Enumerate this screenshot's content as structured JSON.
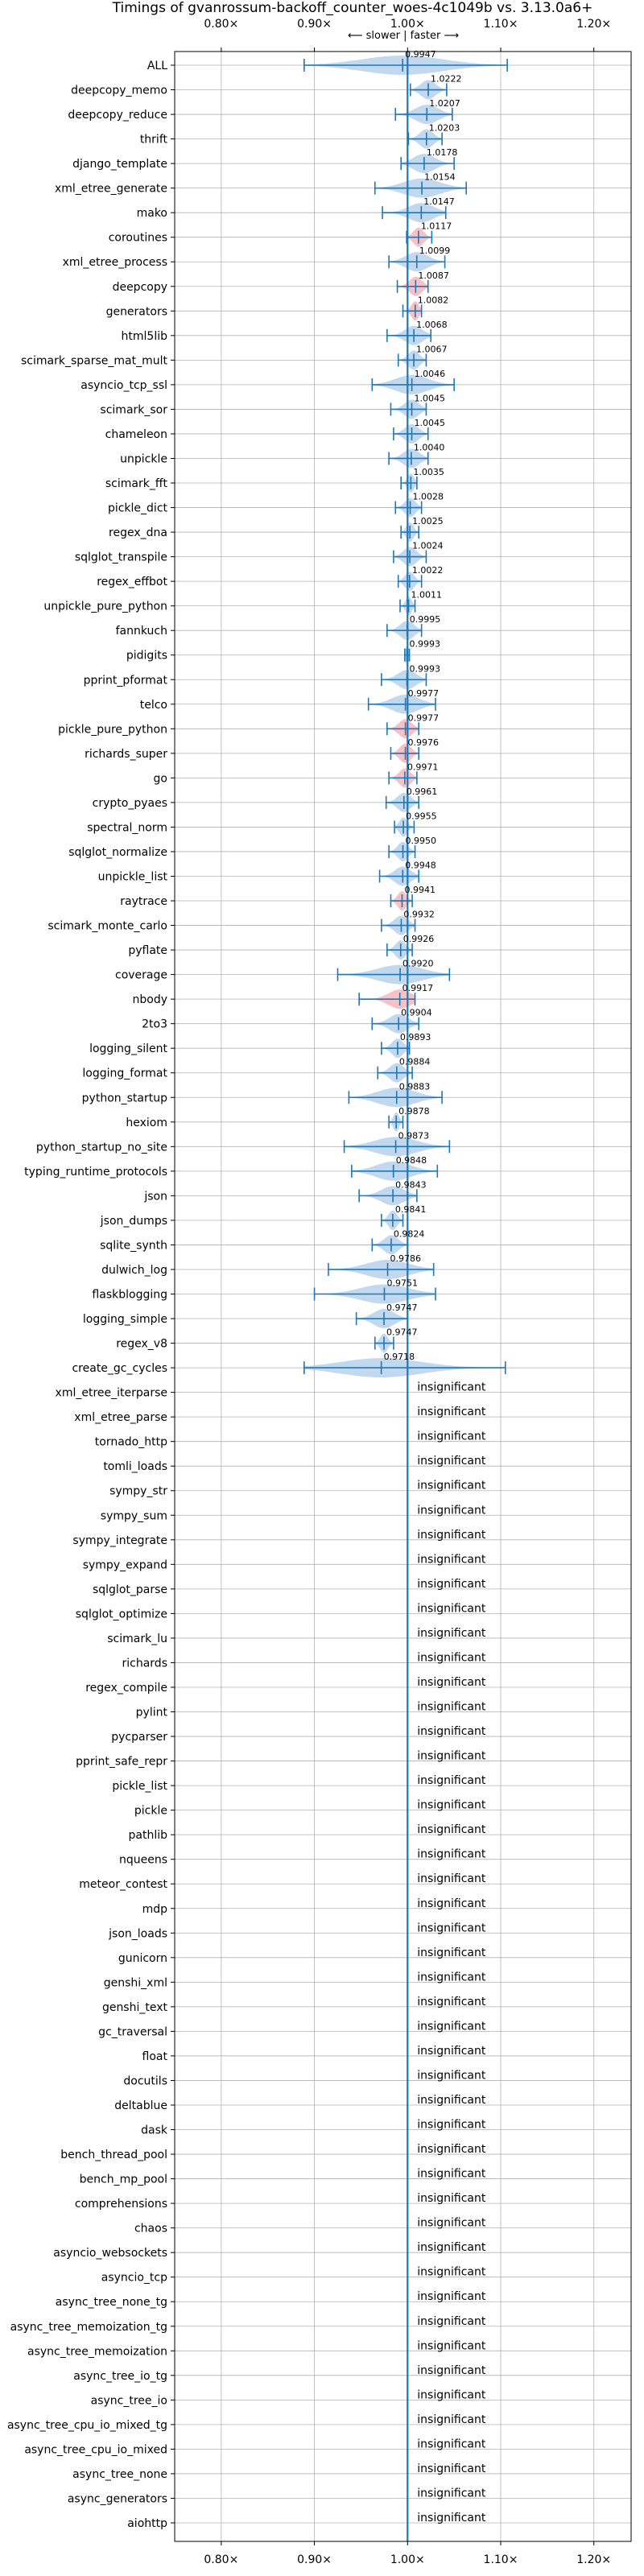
{
  "chart_data": {
    "type": "violin",
    "title": "Timings of gvanrossum-backoff_counter_woes-4c1049b vs. 3.13.0a6+",
    "direction_hint": "⟵ slower | faster ⟶",
    "xlim": [
      0.75,
      1.24
    ],
    "xticks": [
      0.8,
      0.9,
      1.0,
      1.1,
      1.2
    ],
    "xtick_labels": [
      "0.80×",
      "0.90×",
      "1.00×",
      "1.10×",
      "1.20×"
    ],
    "reference_line": 1.0,
    "insignificant_label": "insignificant",
    "colors": {
      "faster": "#a6c8e8",
      "slower": "#f4a7b1",
      "line": "#1f77b4",
      "grid": "#b0b0b0"
    },
    "benchmarks": [
      {
        "name": "ALL",
        "value": 0.9947,
        "label": "0.9947",
        "low": 0.889,
        "high": 1.107,
        "spread": 0.025
      },
      {
        "name": "deepcopy_memo",
        "value": 1.0222,
        "label": "1.0222",
        "low": 1.003,
        "high": 1.042,
        "spread": 0.02
      },
      {
        "name": "deepcopy_reduce",
        "value": 1.0207,
        "label": "1.0207",
        "low": 0.987,
        "high": 1.048,
        "spread": 0.03
      },
      {
        "name": "thrift",
        "value": 1.0203,
        "label": "1.0203",
        "low": 1.001,
        "high": 1.037,
        "spread": 0.015
      },
      {
        "name": "django_template",
        "value": 1.0178,
        "label": "1.0178",
        "low": 0.993,
        "high": 1.05,
        "spread": 0.02
      },
      {
        "name": "xml_etree_generate",
        "value": 1.0154,
        "label": "1.0154",
        "low": 0.965,
        "high": 1.063,
        "spread": 0.03
      },
      {
        "name": "mako",
        "value": 1.0147,
        "label": "1.0147",
        "low": 0.973,
        "high": 1.041,
        "spread": 0.02
      },
      {
        "name": "coroutines",
        "value": 1.0117,
        "label": "1.0117",
        "low": 0.999,
        "high": 1.026,
        "spread": 0.012
      },
      {
        "name": "xml_etree_process",
        "value": 1.0099,
        "label": "1.0099",
        "low": 0.98,
        "high": 1.04,
        "spread": 0.025
      },
      {
        "name": "deepcopy",
        "value": 1.0087,
        "label": "1.0087",
        "low": 0.989,
        "high": 1.022,
        "spread": 0.015
      },
      {
        "name": "generators",
        "value": 1.0082,
        "label": "1.0082",
        "low": 0.995,
        "high": 1.015,
        "spread": 0.012
      },
      {
        "name": "html5lib",
        "value": 1.0068,
        "label": "1.0068",
        "low": 0.978,
        "high": 1.025,
        "spread": 0.02
      },
      {
        "name": "scimark_sparse_mat_mult",
        "value": 1.0067,
        "label": "1.0067",
        "low": 0.99,
        "high": 1.02,
        "spread": 0.015
      },
      {
        "name": "asyncio_tcp_ssl",
        "value": 1.0046,
        "label": "1.0046",
        "low": 0.962,
        "high": 1.05,
        "spread": 0.025
      },
      {
        "name": "scimark_sor",
        "value": 1.0045,
        "label": "1.0045",
        "low": 0.982,
        "high": 1.02,
        "spread": 0.015
      },
      {
        "name": "chameleon",
        "value": 1.0045,
        "label": "1.0045",
        "low": 0.985,
        "high": 1.022,
        "spread": 0.015
      },
      {
        "name": "unpickle",
        "value": 1.004,
        "label": "1.0040",
        "low": 0.98,
        "high": 1.022,
        "spread": 0.02
      },
      {
        "name": "scimark_fft",
        "value": 1.0035,
        "label": "1.0035",
        "low": 0.993,
        "high": 1.01,
        "spread": 0.008
      },
      {
        "name": "pickle_dict",
        "value": 1.0028,
        "label": "1.0028",
        "low": 0.987,
        "high": 1.015,
        "spread": 0.012
      },
      {
        "name": "regex_dna",
        "value": 1.0025,
        "label": "1.0025",
        "low": 0.993,
        "high": 1.012,
        "spread": 0.008
      },
      {
        "name": "sqlglot_transpile",
        "value": 1.0024,
        "label": "1.0024",
        "low": 0.985,
        "high": 1.02,
        "spread": 0.015
      },
      {
        "name": "regex_effbot",
        "value": 1.0022,
        "label": "1.0022",
        "low": 0.99,
        "high": 1.015,
        "spread": 0.01
      },
      {
        "name": "unpickle_pure_python",
        "value": 1.0011,
        "label": "1.0011",
        "low": 0.992,
        "high": 1.008,
        "spread": 0.008
      },
      {
        "name": "fannkuch",
        "value": 0.9995,
        "label": "0.9995",
        "low": 0.978,
        "high": 1.015,
        "spread": 0.015
      },
      {
        "name": "pidigits",
        "value": 0.9993,
        "label": "0.9993",
        "low": 0.997,
        "high": 1.002,
        "spread": 0.004
      },
      {
        "name": "pprint_pformat",
        "value": 0.9993,
        "label": "0.9993",
        "low": 0.972,
        "high": 1.02,
        "spread": 0.015
      },
      {
        "name": "telco",
        "value": 0.9977,
        "label": "0.9977",
        "low": 0.958,
        "high": 1.03,
        "spread": 0.025
      },
      {
        "name": "pickle_pure_python",
        "value": 0.9977,
        "label": "0.9977",
        "low": 0.978,
        "high": 1.012,
        "spread": 0.012
      },
      {
        "name": "richards_super",
        "value": 0.9976,
        "label": "0.9976",
        "low": 0.982,
        "high": 1.012,
        "spread": 0.015
      },
      {
        "name": "go",
        "value": 0.9971,
        "label": "0.9971",
        "low": 0.98,
        "high": 1.01,
        "spread": 0.015
      },
      {
        "name": "crypto_pyaes",
        "value": 0.9961,
        "label": "0.9961",
        "low": 0.977,
        "high": 1.012,
        "spread": 0.015
      },
      {
        "name": "spectral_norm",
        "value": 0.9955,
        "label": "0.9955",
        "low": 0.986,
        "high": 1.007,
        "spread": 0.01
      },
      {
        "name": "sqlglot_normalize",
        "value": 0.995,
        "label": "0.9950",
        "low": 0.98,
        "high": 1.008,
        "spread": 0.012
      },
      {
        "name": "unpickle_list",
        "value": 0.9948,
        "label": "0.9948",
        "low": 0.97,
        "high": 1.012,
        "spread": 0.015
      },
      {
        "name": "raytrace",
        "value": 0.9941,
        "label": "0.9941",
        "low": 0.982,
        "high": 1.005,
        "spread": 0.012
      },
      {
        "name": "scimark_monte_carlo",
        "value": 0.9932,
        "label": "0.9932",
        "low": 0.972,
        "high": 1.008,
        "spread": 0.015
      },
      {
        "name": "pyflate",
        "value": 0.9926,
        "label": "0.9926",
        "low": 0.978,
        "high": 1.005,
        "spread": 0.012
      },
      {
        "name": "coverage",
        "value": 0.992,
        "label": "0.9920",
        "low": 0.925,
        "high": 1.045,
        "spread": 0.035
      },
      {
        "name": "nbody",
        "value": 0.9917,
        "label": "0.9917",
        "low": 0.948,
        "high": 1.008,
        "spread": 0.025
      },
      {
        "name": "2to3",
        "value": 0.9904,
        "label": "0.9904",
        "low": 0.962,
        "high": 1.012,
        "spread": 0.02
      },
      {
        "name": "logging_silent",
        "value": 0.9893,
        "label": "0.9893",
        "low": 0.972,
        "high": 1.002,
        "spread": 0.012
      },
      {
        "name": "logging_format",
        "value": 0.9884,
        "label": "0.9884",
        "low": 0.968,
        "high": 1.005,
        "spread": 0.015
      },
      {
        "name": "python_startup",
        "value": 0.9883,
        "label": "0.9883",
        "low": 0.937,
        "high": 1.037,
        "spread": 0.03
      },
      {
        "name": "hexiom",
        "value": 0.9878,
        "label": "0.9878",
        "low": 0.98,
        "high": 0.995,
        "spread": 0.008
      },
      {
        "name": "python_startup_no_site",
        "value": 0.9873,
        "label": "0.9873",
        "low": 0.932,
        "high": 1.045,
        "spread": 0.03
      },
      {
        "name": "typing_runtime_protocols",
        "value": 0.9848,
        "label": "0.9848",
        "low": 0.94,
        "high": 1.032,
        "spread": 0.03
      },
      {
        "name": "json",
        "value": 0.9843,
        "label": "0.9843",
        "low": 0.948,
        "high": 1.01,
        "spread": 0.025
      },
      {
        "name": "json_dumps",
        "value": 0.9841,
        "label": "0.9841",
        "low": 0.972,
        "high": 0.995,
        "spread": 0.012
      },
      {
        "name": "sqlite_synth",
        "value": 0.9824,
        "label": "0.9824",
        "low": 0.962,
        "high": 1.0,
        "spread": 0.015
      },
      {
        "name": "dulwich_log",
        "value": 0.9786,
        "label": "0.9786",
        "low": 0.915,
        "high": 1.028,
        "spread": 0.035
      },
      {
        "name": "flaskblogging",
        "value": 0.9751,
        "label": "0.9751",
        "low": 0.9,
        "high": 1.03,
        "spread": 0.035
      },
      {
        "name": "logging_simple",
        "value": 0.9747,
        "label": "0.9747",
        "low": 0.945,
        "high": 1.0,
        "spread": 0.025
      },
      {
        "name": "regex_v8",
        "value": 0.9747,
        "label": "0.9747",
        "low": 0.965,
        "high": 0.985,
        "spread": 0.01
      },
      {
        "name": "create_gc_cycles",
        "value": 0.9718,
        "label": "0.9718",
        "low": 0.889,
        "high": 1.105,
        "spread": 0.04
      },
      {
        "name": "xml_etree_iterparse",
        "insignificant": true
      },
      {
        "name": "xml_etree_parse",
        "insignificant": true
      },
      {
        "name": "tornado_http",
        "insignificant": true
      },
      {
        "name": "tomli_loads",
        "insignificant": true
      },
      {
        "name": "sympy_str",
        "insignificant": true
      },
      {
        "name": "sympy_sum",
        "insignificant": true
      },
      {
        "name": "sympy_integrate",
        "insignificant": true
      },
      {
        "name": "sympy_expand",
        "insignificant": true
      },
      {
        "name": "sqlglot_parse",
        "insignificant": true
      },
      {
        "name": "sqlglot_optimize",
        "insignificant": true
      },
      {
        "name": "scimark_lu",
        "insignificant": true
      },
      {
        "name": "richards",
        "insignificant": true
      },
      {
        "name": "regex_compile",
        "insignificant": true
      },
      {
        "name": "pylint",
        "insignificant": true
      },
      {
        "name": "pycparser",
        "insignificant": true
      },
      {
        "name": "pprint_safe_repr",
        "insignificant": true
      },
      {
        "name": "pickle_list",
        "insignificant": true
      },
      {
        "name": "pickle",
        "insignificant": true
      },
      {
        "name": "pathlib",
        "insignificant": true
      },
      {
        "name": "nqueens",
        "insignificant": true
      },
      {
        "name": "meteor_contest",
        "insignificant": true
      },
      {
        "name": "mdp",
        "insignificant": true
      },
      {
        "name": "json_loads",
        "insignificant": true
      },
      {
        "name": "gunicorn",
        "insignificant": true
      },
      {
        "name": "genshi_xml",
        "insignificant": true
      },
      {
        "name": "genshi_text",
        "insignificant": true
      },
      {
        "name": "gc_traversal",
        "insignificant": true
      },
      {
        "name": "float",
        "insignificant": true
      },
      {
        "name": "docutils",
        "insignificant": true
      },
      {
        "name": "deltablue",
        "insignificant": true
      },
      {
        "name": "dask",
        "insignificant": true
      },
      {
        "name": "bench_thread_pool",
        "insignificant": true
      },
      {
        "name": "bench_mp_pool",
        "insignificant": true
      },
      {
        "name": "comprehensions",
        "insignificant": true
      },
      {
        "name": "chaos",
        "insignificant": true
      },
      {
        "name": "asyncio_websockets",
        "insignificant": true
      },
      {
        "name": "asyncio_tcp",
        "insignificant": true
      },
      {
        "name": "async_tree_none_tg",
        "insignificant": true
      },
      {
        "name": "async_tree_memoization_tg",
        "insignificant": true
      },
      {
        "name": "async_tree_memoization",
        "insignificant": true
      },
      {
        "name": "async_tree_io_tg",
        "insignificant": true
      },
      {
        "name": "async_tree_io",
        "insignificant": true
      },
      {
        "name": "async_tree_cpu_io_mixed_tg",
        "insignificant": true
      },
      {
        "name": "async_tree_cpu_io_mixed",
        "insignificant": true
      },
      {
        "name": "async_tree_none",
        "insignificant": true
      },
      {
        "name": "async_generators",
        "insignificant": true
      },
      {
        "name": "aiohttp",
        "insignificant": true
      }
    ]
  }
}
